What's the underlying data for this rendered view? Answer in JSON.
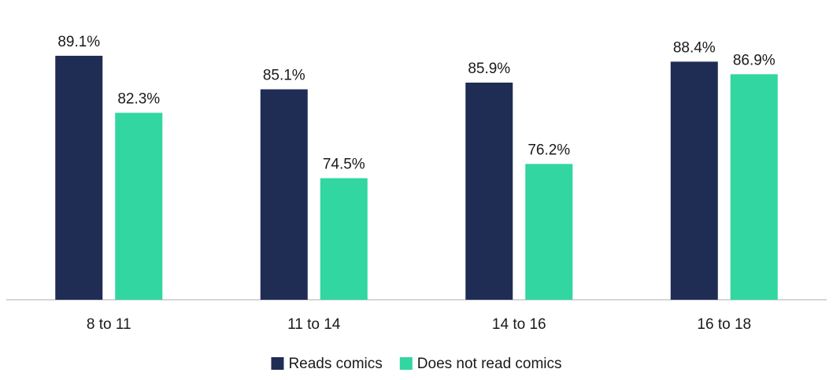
{
  "chart_data": {
    "type": "bar",
    "title": "",
    "xlabel": "",
    "ylabel": "",
    "categories": [
      "8 to 11",
      "11 to 14",
      "14 to 16",
      "16 to 18"
    ],
    "series": [
      {
        "name": "Reads comics",
        "color": "#1f2d55",
        "values": [
          89.1,
          85.1,
          85.9,
          88.4
        ],
        "labels": [
          "89.1%",
          "85.1%",
          "85.9%",
          "88.4%"
        ]
      },
      {
        "name": "Does not read comics",
        "color": "#31d6a0",
        "values": [
          82.3,
          74.5,
          76.2,
          86.9
        ],
        "labels": [
          "82.3%",
          "74.5%",
          "76.2%",
          "86.9%"
        ]
      }
    ],
    "ylim": [
      60,
      92
    ],
    "grid": false,
    "legend_position": "bottom-center",
    "baseline_color": "#c8c8c8"
  }
}
